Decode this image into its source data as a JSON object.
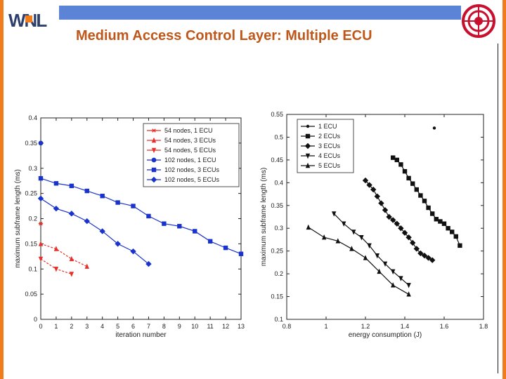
{
  "header": {
    "logo_text": "WNL",
    "title": "Medium Access Control Layer: Multiple ECU"
  },
  "colors": {
    "accent": "#f07c1e",
    "top_bar": "#5b84d6",
    "title": "#c0571a",
    "red_series": "#e8302a",
    "blue_series": "#1a33cc"
  },
  "chart_data": [
    {
      "type": "line",
      "xlabel": "iteration number",
      "ylabel": "maximum subframe length (ms)",
      "xlim": [
        0,
        13
      ],
      "ylim": [
        0,
        0.4
      ],
      "xticks": [
        "0",
        "1",
        "2",
        "3",
        "4",
        "5",
        "6",
        "7",
        "8",
        "9",
        "10",
        "11",
        "12",
        "13"
      ],
      "yticks": [
        "0",
        "0.05",
        "0.1",
        "0.15",
        "0.2",
        "0.25",
        "0.3",
        "0.35",
        "0.4"
      ],
      "legend": "top-right",
      "series": [
        {
          "name": "54 nodes, 1 ECU",
          "color": "#e8302a",
          "marker": "star",
          "x": [
            0
          ],
          "y": [
            0.19
          ]
        },
        {
          "name": "54 nodes, 3 ECUs",
          "color": "#e8302a",
          "marker": "triangle-up",
          "x": [
            0,
            1,
            2,
            3
          ],
          "y": [
            0.15,
            0.14,
            0.12,
            0.105
          ]
        },
        {
          "name": "54 nodes, 5 ECUs",
          "color": "#e8302a",
          "marker": "triangle-down",
          "x": [
            0,
            1,
            2
          ],
          "y": [
            0.12,
            0.1,
            0.09
          ]
        },
        {
          "name": "102 nodes, 1 ECU",
          "color": "#1a33cc",
          "marker": "circle",
          "x": [
            0
          ],
          "y": [
            0.35
          ]
        },
        {
          "name": "102 nodes, 3 ECUs",
          "color": "#1a33cc",
          "marker": "square",
          "x": [
            0,
            1,
            2,
            3,
            4,
            5,
            6,
            7,
            8,
            9,
            10,
            11,
            12,
            13
          ],
          "y": [
            0.28,
            0.27,
            0.265,
            0.255,
            0.245,
            0.232,
            0.225,
            0.205,
            0.19,
            0.185,
            0.175,
            0.155,
            0.142,
            0.13
          ]
        },
        {
          "name": "102 nodes, 5 ECUs",
          "color": "#1a33cc",
          "marker": "diamond",
          "x": [
            0,
            1,
            2,
            3,
            4,
            5,
            6,
            7
          ],
          "y": [
            0.24,
            0.22,
            0.21,
            0.195,
            0.175,
            0.15,
            0.135,
            0.11
          ]
        }
      ]
    },
    {
      "type": "line",
      "xlabel": "energy consumption (J)",
      "ylabel": "maximum subframe length (ms)",
      "xlim": [
        0.8,
        1.8
      ],
      "ylim": [
        0.1,
        0.55
      ],
      "xticks": [
        "0.8",
        "1",
        "1.2",
        "1.4",
        "1.6",
        "1.8"
      ],
      "yticks": [
        "0.1",
        "0.15",
        "0.2",
        "0.25",
        "0.3",
        "0.35",
        "0.4",
        "0.45",
        "0.5",
        "0.55"
      ],
      "legend": "top-left",
      "series": [
        {
          "name": "1 ECU",
          "color": "#111111",
          "marker": "dot",
          "x": [
            1.55
          ],
          "y": [
            0.52
          ]
        },
        {
          "name": "2 ECUs",
          "color": "#111111",
          "marker": "square",
          "x": [
            1.34,
            1.36,
            1.38,
            1.4,
            1.42,
            1.44,
            1.46,
            1.48,
            1.5,
            1.52,
            1.54,
            1.56,
            1.58,
            1.6,
            1.62,
            1.64,
            1.66,
            1.68
          ],
          "y": [
            0.455,
            0.45,
            0.44,
            0.425,
            0.41,
            0.398,
            0.385,
            0.372,
            0.36,
            0.345,
            0.332,
            0.32,
            0.315,
            0.31,
            0.3,
            0.292,
            0.282,
            0.262
          ]
        },
        {
          "name": "3 ECUs",
          "color": "#111111",
          "marker": "diamond",
          "x": [
            1.2,
            1.22,
            1.24,
            1.26,
            1.28,
            1.3,
            1.32,
            1.34,
            1.36,
            1.38,
            1.4,
            1.42,
            1.44,
            1.46,
            1.48,
            1.5,
            1.52,
            1.54
          ],
          "y": [
            0.405,
            0.395,
            0.385,
            0.37,
            0.355,
            0.34,
            0.325,
            0.318,
            0.31,
            0.3,
            0.29,
            0.28,
            0.268,
            0.255,
            0.245,
            0.24,
            0.235,
            0.23
          ]
        },
        {
          "name": "4 ECUs",
          "color": "#111111",
          "marker": "triangle-down",
          "x": [
            1.04,
            1.09,
            1.14,
            1.18,
            1.22,
            1.26,
            1.3,
            1.34,
            1.38,
            1.42
          ],
          "y": [
            0.332,
            0.31,
            0.292,
            0.28,
            0.262,
            0.24,
            0.222,
            0.205,
            0.19,
            0.175
          ]
        },
        {
          "name": "5 ECUs",
          "color": "#111111",
          "marker": "triangle-up",
          "x": [
            0.91,
            0.99,
            1.06,
            1.13,
            1.2,
            1.27,
            1.34,
            1.42
          ],
          "y": [
            0.302,
            0.28,
            0.272,
            0.255,
            0.235,
            0.205,
            0.175,
            0.155
          ]
        }
      ]
    }
  ]
}
